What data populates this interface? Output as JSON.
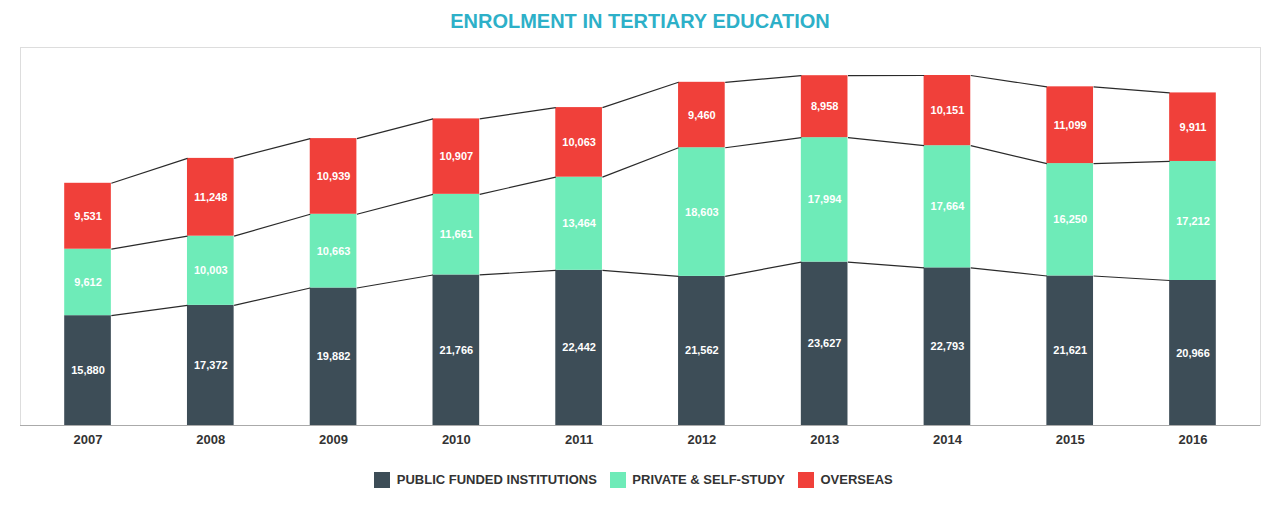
{
  "chart_data": {
    "type": "bar",
    "title": "ENROLMENT IN TERTIARY EDUCATION",
    "stacked": true,
    "categories": [
      "2007",
      "2008",
      "2009",
      "2010",
      "2011",
      "2012",
      "2013",
      "2014",
      "2015",
      "2016"
    ],
    "series": [
      {
        "name": "PUBLIC FUNDED INSTITUTIONS",
        "color": "#3d4d57",
        "values": [
          15880,
          17372,
          19882,
          21766,
          22442,
          21562,
          23627,
          22793,
          21621,
          20966
        ],
        "value_labels": [
          "15,880",
          "17,372",
          "19,882",
          "21,766",
          "22,442",
          "21,562",
          "23,627",
          "22,793",
          "21,621",
          "20,966"
        ]
      },
      {
        "name": "PRIVATE & SELF-STUDY",
        "color": "#6eebb8",
        "values": [
          9612,
          10003,
          10663,
          11661,
          13464,
          18603,
          17994,
          17664,
          16250,
          17212
        ],
        "value_labels": [
          "9,612",
          "10,003",
          "10,663",
          "11,661",
          "13,464",
          "18,603",
          "17,994",
          "17,664",
          "16,250",
          "17,212"
        ]
      },
      {
        "name": "OVERSEAS",
        "color": "#f0403a",
        "values": [
          9531,
          11248,
          10939,
          10907,
          10063,
          9460,
          8958,
          10151,
          11099,
          9911
        ],
        "value_labels": [
          "9,531",
          "11,248",
          "10,939",
          "10,907",
          "10,063",
          "9,460",
          "8,958",
          "10,151",
          "11,099",
          "9,911"
        ]
      }
    ],
    "ylim": [
      0,
      54657.72
    ],
    "data_labels": true,
    "tick_labels": "x",
    "legend": "bottom",
    "grid": false
  }
}
